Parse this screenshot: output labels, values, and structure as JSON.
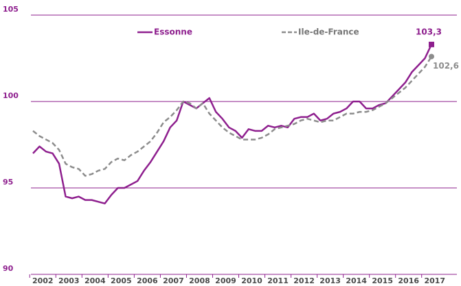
{
  "chart_data": {
    "type": "line",
    "categories": [
      "2002",
      null,
      null,
      null,
      "2003",
      null,
      null,
      null,
      "2004",
      null,
      null,
      null,
      "2005",
      null,
      null,
      null,
      "2006",
      null,
      null,
      null,
      "2007",
      null,
      null,
      null,
      "2008",
      null,
      null,
      null,
      "2009",
      null,
      null,
      null,
      "2010",
      null,
      null,
      null,
      "2011",
      null,
      null,
      null,
      "2012",
      null,
      null,
      null,
      "2013",
      null,
      null,
      null,
      "2014",
      null,
      null,
      null,
      "2015",
      null,
      null,
      null,
      "2016",
      null,
      null,
      null,
      "2017",
      null
    ],
    "series": [
      {
        "name": "Essonne",
        "color": "#8e1f8e",
        "dashed": false,
        "marker": "square",
        "values": [
          97.0,
          97.4,
          97.1,
          97.0,
          96.4,
          94.5,
          94.4,
          94.5,
          94.3,
          94.3,
          94.2,
          94.1,
          94.6,
          95.0,
          95.0,
          95.2,
          95.4,
          96.0,
          96.5,
          97.1,
          97.7,
          98.5,
          98.9,
          100.0,
          99.8,
          99.6,
          99.9,
          100.2,
          99.4,
          99.0,
          98.5,
          98.3,
          97.9,
          98.4,
          98.3,
          98.3,
          98.6,
          98.5,
          98.6,
          98.5,
          99.0,
          99.1,
          99.1,
          99.3,
          98.9,
          99.0,
          99.3,
          99.4,
          99.6,
          100.0,
          100.0,
          99.6,
          99.6,
          99.8,
          99.9,
          100.3,
          100.7,
          101.1,
          101.7,
          102.1,
          102.5,
          103.3
        ],
        "value_labels": [
          null,
          null,
          null,
          null,
          null,
          null,
          null,
          null,
          null,
          null,
          null,
          null,
          null,
          null,
          null,
          null,
          null,
          null,
          null,
          null,
          null,
          null,
          null,
          null,
          null,
          null,
          null,
          null,
          null,
          null,
          null,
          null,
          null,
          null,
          null,
          null,
          null,
          null,
          null,
          null,
          null,
          null,
          null,
          null,
          null,
          null,
          null,
          null,
          null,
          null,
          null,
          null,
          null,
          null,
          null,
          null,
          null,
          null,
          null,
          null,
          null,
          "103,3"
        ]
      },
      {
        "name": "Ile-de-France",
        "color": "#8c8c8c",
        "dashed": true,
        "marker": "circle",
        "values": [
          98.3,
          98.0,
          97.8,
          97.6,
          97.2,
          96.4,
          96.2,
          96.1,
          95.7,
          95.8,
          96.0,
          96.1,
          96.5,
          96.7,
          96.6,
          96.9,
          97.1,
          97.4,
          97.7,
          98.2,
          98.8,
          99.1,
          99.5,
          100.0,
          99.9,
          99.6,
          99.9,
          99.3,
          98.9,
          98.5,
          98.2,
          98.0,
          97.8,
          97.8,
          97.8,
          97.9,
          98.1,
          98.4,
          98.5,
          98.6,
          98.7,
          98.9,
          99.0,
          98.9,
          98.8,
          98.9,
          98.9,
          99.1,
          99.3,
          99.3,
          99.4,
          99.4,
          99.5,
          99.7,
          99.9,
          100.2,
          100.5,
          100.8,
          101.2,
          101.6,
          102.0,
          102.6
        ],
        "value_labels": [
          null,
          null,
          null,
          null,
          null,
          null,
          null,
          null,
          null,
          null,
          null,
          null,
          null,
          null,
          null,
          null,
          null,
          null,
          null,
          null,
          null,
          null,
          null,
          null,
          null,
          null,
          null,
          null,
          null,
          null,
          null,
          null,
          null,
          null,
          null,
          null,
          null,
          null,
          null,
          null,
          null,
          null,
          null,
          null,
          null,
          null,
          null,
          null,
          null,
          null,
          null,
          null,
          null,
          null,
          null,
          null,
          null,
          null,
          null,
          null,
          null,
          "102,6"
        ]
      }
    ],
    "ylim": [
      90,
      105
    ],
    "yticks": [
      90,
      95,
      100,
      105
    ],
    "grid": true,
    "grid_color": "#8e1f8e",
    "legend": "top"
  }
}
